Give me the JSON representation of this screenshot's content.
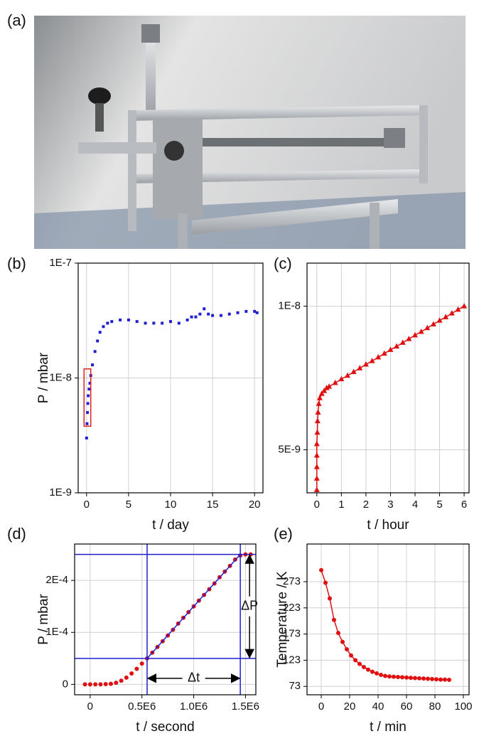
{
  "figure": {
    "photo_label": "(a)"
  },
  "chart_data": [
    {
      "type": "scatter",
      "panel": "(b)",
      "xlabel": "t / day",
      "ylabel": "P / mbar",
      "yscale": "log",
      "grid": true,
      "marker": "square",
      "color": "#1f1fd0",
      "xlim": [
        -1,
        21
      ],
      "ylim": [
        1e-09,
        1e-07
      ],
      "xticks": [
        0,
        5,
        10,
        15,
        20
      ],
      "yticks": [
        {
          "value": 1e-09,
          "label": "1E-9"
        },
        {
          "value": 1e-08,
          "label": "1E-8"
        },
        {
          "value": 1e-07,
          "label": "1E-7"
        }
      ],
      "x": [
        0,
        0.05,
        0.1,
        0.15,
        0.2,
        0.3,
        0.4,
        0.5,
        0.7,
        1,
        1.3,
        1.6,
        2,
        2.5,
        3,
        4,
        5,
        6,
        7,
        8,
        9,
        10,
        11,
        12,
        12.5,
        13,
        13.5,
        14,
        14.5,
        15,
        16,
        17,
        18,
        19,
        20,
        20.3
      ],
      "values": [
        3e-09,
        4e-09,
        5e-09,
        6e-09,
        7e-09,
        8e-09,
        9e-09,
        1.05e-08,
        1.3e-08,
        1.7e-08,
        2.1e-08,
        2.5e-08,
        2.8e-08,
        3e-08,
        3.1e-08,
        3.2e-08,
        3.2e-08,
        3.1e-08,
        3e-08,
        3e-08,
        3e-08,
        3.1e-08,
        3e-08,
        3.2e-08,
        3.4e-08,
        3.4e-08,
        3.6e-08,
        4e-08,
        3.6e-08,
        3.5e-08,
        3.5e-08,
        3.6e-08,
        3.7e-08,
        3.8e-08,
        3.8e-08,
        3.7e-08
      ],
      "highlight": {
        "color": "#e02020",
        "x": [
          -0.3,
          0.5
        ],
        "y": [
          3.8e-09,
          1.2e-08
        ]
      }
    },
    {
      "type": "line",
      "panel": "(c)",
      "xlabel": "t / hour",
      "grid": true,
      "marker": "triangle",
      "color": "#e01010",
      "xlim": [
        -0.4,
        6.2
      ],
      "ylim": [
        3.5e-09,
        1.15e-08
      ],
      "xticks": [
        0,
        1,
        2,
        3,
        4,
        5,
        6
      ],
      "yticks": [
        {
          "value": 5e-09,
          "label": "5E-9"
        },
        {
          "value": 1e-08,
          "label": "1E-8"
        }
      ],
      "x": [
        0,
        0,
        0,
        0,
        0,
        0.02,
        0.03,
        0.05,
        0.08,
        0.12,
        0.2,
        0.3,
        0.4,
        0.5,
        0.75,
        1,
        1.25,
        1.5,
        1.75,
        2,
        2.25,
        2.5,
        2.75,
        3,
        3.25,
        3.5,
        3.75,
        4,
        4.25,
        4.5,
        4.75,
        5,
        5.25,
        5.5,
        5.75,
        6
      ],
      "values": [
        3.6e-09,
        4e-09,
        4.4e-09,
        4.8e-09,
        5.2e-09,
        5.6e-09,
        6e-09,
        6.3e-09,
        6.6e-09,
        6.8e-09,
        6.95e-09,
        7.05e-09,
        7.15e-09,
        7.2e-09,
        7.33e-09,
        7.46e-09,
        7.58e-09,
        7.71e-09,
        7.84e-09,
        7.97e-09,
        8.09e-09,
        8.22e-09,
        8.35e-09,
        8.48e-09,
        8.6e-09,
        8.73e-09,
        8.86e-09,
        8.99e-09,
        9.11e-09,
        9.24e-09,
        9.37e-09,
        9.5e-09,
        9.62e-09,
        9.75e-09,
        9.88e-09,
        1e-08
      ]
    },
    {
      "type": "scatter",
      "panel": "(d)",
      "xlabel": "t / second",
      "ylabel": "P / mbar",
      "grid": true,
      "marker": "circle",
      "color": "#e01010",
      "xlim": [
        -150000,
        1600000
      ],
      "ylim": [
        -2e-05,
        0.00027
      ],
      "xticks": [
        0,
        {
          "value": 500000,
          "label": "0.5E6"
        },
        {
          "value": 1000000,
          "label": "1.0E6"
        },
        {
          "value": 1500000,
          "label": "1.5E6"
        }
      ],
      "yticks": [
        0,
        {
          "value": 0.0001,
          "label": "1E-4"
        },
        {
          "value": 0.0002,
          "label": "2E-4"
        }
      ],
      "x": [
        -50000,
        0,
        50000,
        100000,
        150000,
        200000,
        250000,
        300000,
        350000,
        400000,
        450000,
        500000,
        550000,
        600000,
        650000,
        700000,
        750000,
        800000,
        850000,
        900000,
        950000,
        1000000,
        1050000,
        1100000,
        1150000,
        1200000,
        1250000,
        1300000,
        1350000,
        1400000,
        1450000,
        1500000,
        1550000
      ],
      "values": [
        0,
        0,
        0,
        0,
        5e-07,
        1e-06,
        3e-06,
        7e-06,
        1.3e-05,
        2.1e-05,
        3e-05,
        4e-05,
        5e-05,
        6.1e-05,
        7.2e-05,
        8.3e-05,
        9.4e-05,
        0.000105,
        0.000117,
        0.000128,
        0.000139,
        0.00015,
        0.000161,
        0.000172,
        0.000183,
        0.000194,
        0.000206,
        0.000217,
        0.000228,
        0.00024,
        0.000248,
        0.00025,
        0.00025
      ],
      "fit": {
        "color": "#1f1fd0",
        "x": [
          550000,
          1450000
        ],
        "values": [
          5e-05,
          0.00025
        ]
      },
      "hlines": [
        5e-05,
        0.00025
      ],
      "vlines": [
        550000,
        1450000
      ],
      "annotations": [
        "Δt",
        "ΔP"
      ]
    },
    {
      "type": "line",
      "panel": "(e)",
      "xlabel": "t / min",
      "ylabel": "Temperature / K",
      "grid": true,
      "marker": "circle",
      "color": "#e01010",
      "xlim": [
        -10,
        104
      ],
      "ylim": [
        57,
        345
      ],
      "xticks": [
        0,
        20,
        40,
        60,
        80,
        100
      ],
      "yticks": [
        73,
        123,
        173,
        223,
        273
      ],
      "x": [
        0,
        3,
        6,
        9,
        12,
        15,
        18,
        21,
        24,
        27,
        30,
        33,
        36,
        39,
        42,
        45,
        48,
        51,
        54,
        57,
        60,
        63,
        66,
        69,
        72,
        75,
        78,
        81,
        84,
        87,
        90
      ],
      "values": [
        295,
        271,
        241,
        200,
        175,
        158,
        144,
        132,
        123,
        116,
        110,
        105,
        101,
        98,
        95,
        93,
        92,
        91.5,
        91,
        90.5,
        90,
        89.5,
        89,
        88.5,
        88,
        87.5,
        87,
        86.5,
        86,
        86,
        85.5
      ]
    }
  ]
}
